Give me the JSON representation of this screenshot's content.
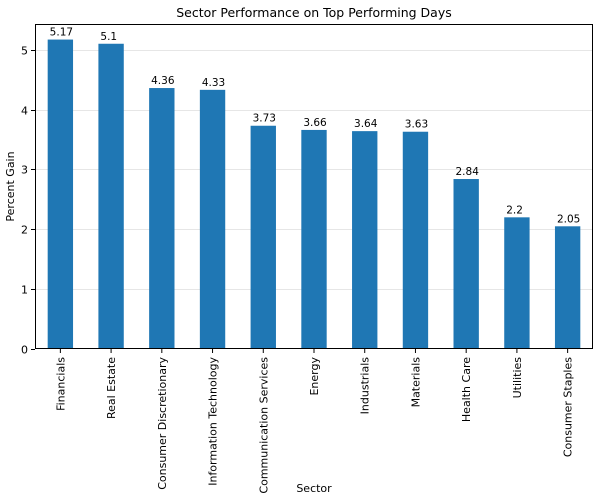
{
  "chart_data": {
    "type": "bar",
    "title": "Sector Performance on Top Performing Days",
    "xlabel": "Sector",
    "ylabel": "Percent Gain",
    "categories": [
      "Financials",
      "Real Estate",
      "Consumer Discretionary",
      "Information Technology",
      "Communication Services",
      "Energy",
      "Industrials",
      "Materials",
      "Health Care",
      "Utilities",
      "Consumer Staples"
    ],
    "values": [
      5.17,
      5.1,
      4.36,
      4.33,
      3.73,
      3.66,
      3.64,
      3.63,
      2.84,
      2.2,
      2.05
    ],
    "data_labels": [
      "5.17",
      "5.1",
      "4.36",
      "4.33",
      "3.73",
      "3.66",
      "3.64",
      "3.63",
      "2.84",
      "2.2",
      "2.05"
    ],
    "yticks": [
      0,
      1,
      2,
      3,
      4,
      5
    ],
    "ylim": [
      0,
      5.43
    ],
    "grid": "horizontal",
    "bar_color": "#1f77b4"
  }
}
